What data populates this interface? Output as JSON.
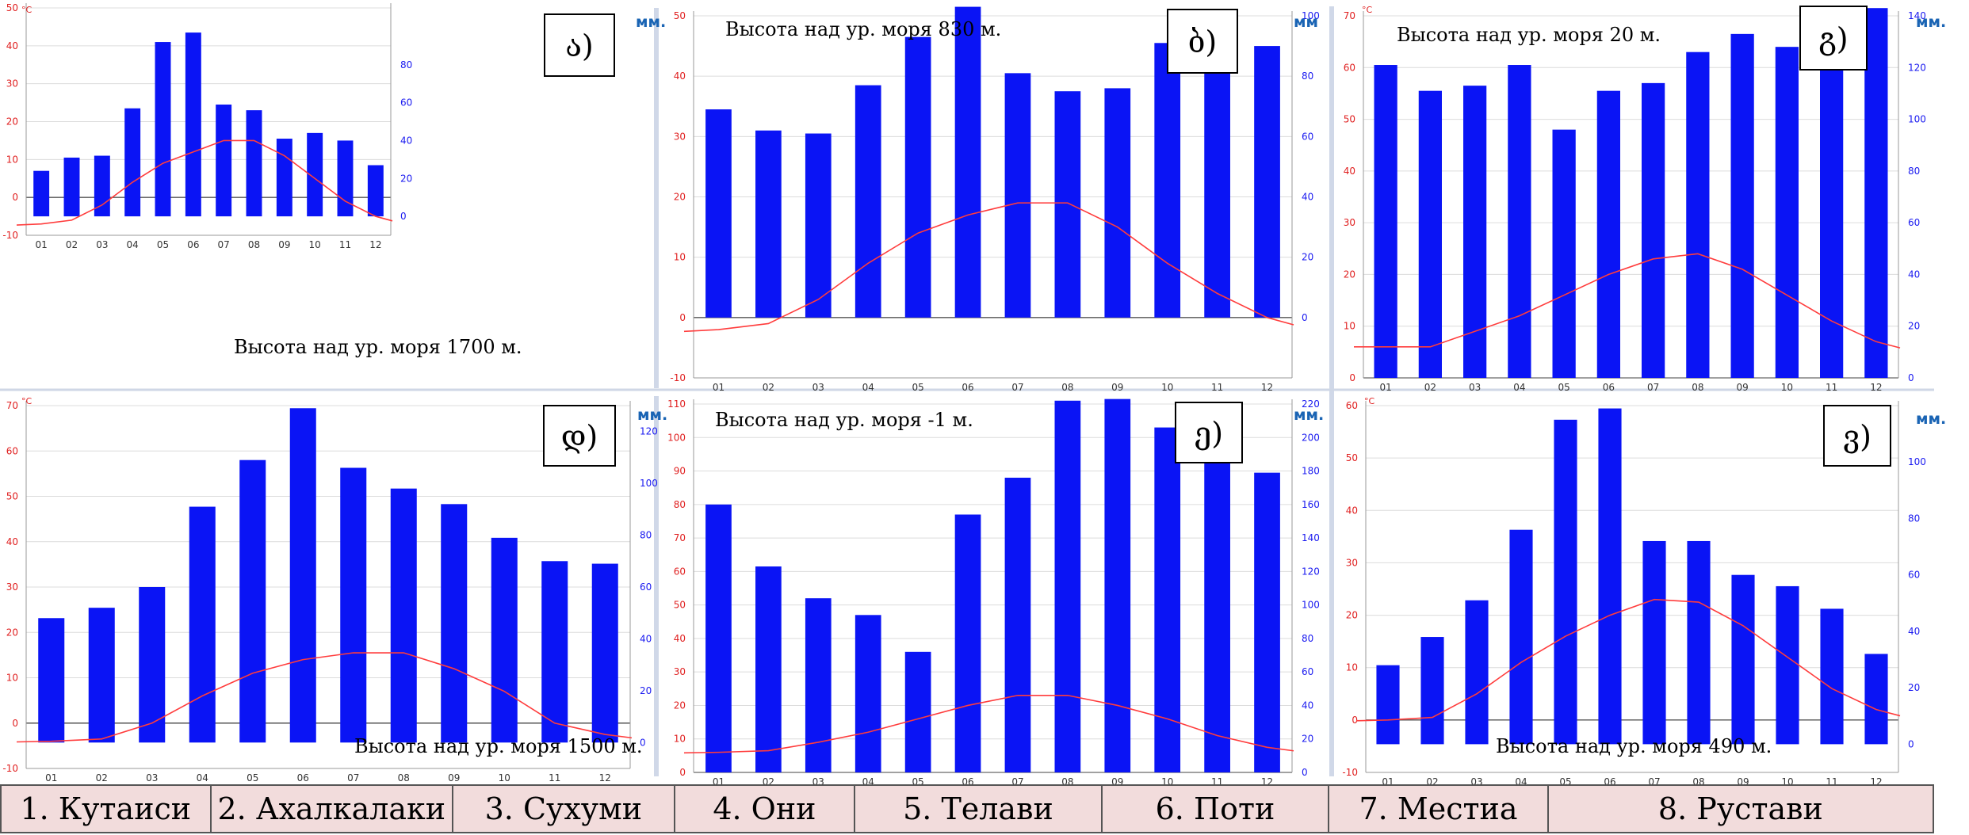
{
  "chart_data": [
    {
      "type": "bar",
      "label": "ა)",
      "annotation": "Высота над ур. моря 1700 м.",
      "y_left_unit": "°C",
      "y_right_unit": "мм.",
      "categories": [
        "01",
        "02",
        "03",
        "04",
        "05",
        "06",
        "07",
        "08",
        "09",
        "10",
        "11",
        "12"
      ],
      "left_ticks": [
        -10,
        0,
        10,
        20,
        30,
        40,
        50
      ],
      "right_ticks": [
        0,
        20,
        40,
        60,
        80
      ],
      "precip_mm": [
        24,
        31,
        32,
        57,
        92,
        97,
        59,
        56,
        41,
        44,
        40,
        27
      ],
      "temp_c": [
        -7,
        -6,
        -2,
        4,
        9,
        12,
        15,
        15,
        11,
        5,
        -1,
        -5
      ]
    },
    {
      "type": "bar",
      "label": "ბ)",
      "annotation": "Высота над ур. моря 830 м.",
      "y_left_unit": "",
      "y_right_unit": "мм",
      "categories": [
        "01",
        "02",
        "03",
        "04",
        "05",
        "06",
        "07",
        "08",
        "09",
        "10",
        "11",
        "12"
      ],
      "left_ticks": [
        -10,
        0,
        10,
        20,
        30,
        40,
        50
      ],
      "right_ticks": [
        0,
        20,
        40,
        60,
        80,
        100
      ],
      "precip_mm": [
        69,
        62,
        61,
        77,
        93,
        103,
        81,
        75,
        76,
        91,
        81,
        90
      ],
      "temp_c": [
        -2,
        -1,
        3,
        9,
        14,
        17,
        19,
        19,
        15,
        9,
        4,
        0
      ]
    },
    {
      "type": "bar",
      "label": "გ)",
      "annotation": "Высота над ур. моря 20 м.",
      "y_left_unit": "°C",
      "y_right_unit": "мм.",
      "categories": [
        "01",
        "02",
        "03",
        "04",
        "05",
        "06",
        "07",
        "08",
        "09",
        "10",
        "11",
        "12"
      ],
      "left_ticks": [
        0,
        10,
        20,
        30,
        40,
        50,
        60,
        70
      ],
      "right_ticks": [
        0,
        20,
        40,
        60,
        80,
        100,
        120,
        140
      ],
      "precip_mm": [
        121,
        111,
        113,
        121,
        96,
        111,
        114,
        126,
        133,
        128,
        136,
        143
      ],
      "temp_c": [
        6,
        6,
        9,
        12,
        16,
        20,
        23,
        24,
        21,
        16,
        11,
        7
      ]
    },
    {
      "type": "bar",
      "label": "დ)",
      "annotation": "Высота над ур. моря 1500 м.",
      "y_left_unit": "°C",
      "y_right_unit": "мм.",
      "categories": [
        "01",
        "02",
        "03",
        "04",
        "05",
        "06",
        "07",
        "08",
        "09",
        "10",
        "11",
        "12"
      ],
      "left_ticks": [
        -10,
        0,
        10,
        20,
        30,
        40,
        50,
        60,
        70
      ],
      "right_ticks": [
        0,
        20,
        40,
        60,
        80,
        100,
        120
      ],
      "precip_mm": [
        48,
        52,
        60,
        91,
        109,
        129,
        106,
        98,
        92,
        79,
        70,
        69
      ],
      "temp_c": [
        -4,
        -3.5,
        0,
        6,
        11,
        14,
        15.5,
        15.5,
        12,
        7,
        0,
        -2.5
      ]
    },
    {
      "type": "bar",
      "label": "ე)",
      "annotation": "Высота над ур. моря -1 м.",
      "y_left_unit": "",
      "y_right_unit": "мм.",
      "categories": [
        "01",
        "02",
        "03",
        "04",
        "05",
        "06",
        "07",
        "08",
        "09",
        "10",
        "11",
        "12"
      ],
      "left_ticks": [
        0,
        10,
        20,
        30,
        40,
        50,
        60,
        70,
        80,
        90,
        100,
        110
      ],
      "right_ticks": [
        0,
        20,
        40,
        60,
        80,
        100,
        120,
        140,
        160,
        180,
        200,
        220
      ],
      "precip_mm": [
        160,
        123,
        104,
        94,
        72,
        154,
        176,
        222,
        223,
        206,
        194,
        179
      ],
      "temp_c": [
        6,
        6.5,
        9,
        12,
        16,
        20,
        23,
        23,
        20,
        16,
        11,
        7.5
      ]
    },
    {
      "type": "bar",
      "label": "ვ)",
      "annotation": "Высота над ур. моря 490 м.",
      "y_left_unit": "°C",
      "y_right_unit": "мм.",
      "categories": [
        "01",
        "02",
        "03",
        "04",
        "05",
        "06",
        "07",
        "08",
        "09",
        "10",
        "11",
        "12"
      ],
      "left_ticks": [
        -10,
        0,
        10,
        20,
        30,
        40,
        50,
        60
      ],
      "right_ticks": [
        0,
        20,
        40,
        60,
        80,
        100
      ],
      "precip_mm": [
        28,
        38,
        51,
        76,
        115,
        119,
        72,
        72,
        60,
        56,
        48,
        32
      ],
      "temp_c": [
        0,
        0.5,
        5,
        11,
        16,
        20,
        23,
        22.5,
        18,
        12,
        6,
        2
      ]
    }
  ],
  "legend": [
    "1. Кутаиси",
    "2. Ахалкалаки",
    "3. Сухуми",
    "4. Они",
    "5. Телави",
    "6. Поти",
    "7. Местиа",
    "8. Рустави"
  ],
  "colors": {
    "bars": "#0a14f5",
    "temp_line": "#ff3c3c",
    "left_axis_text": "#e02020",
    "right_axis_text": "#1a1af0",
    "units": "#1a64b4"
  }
}
